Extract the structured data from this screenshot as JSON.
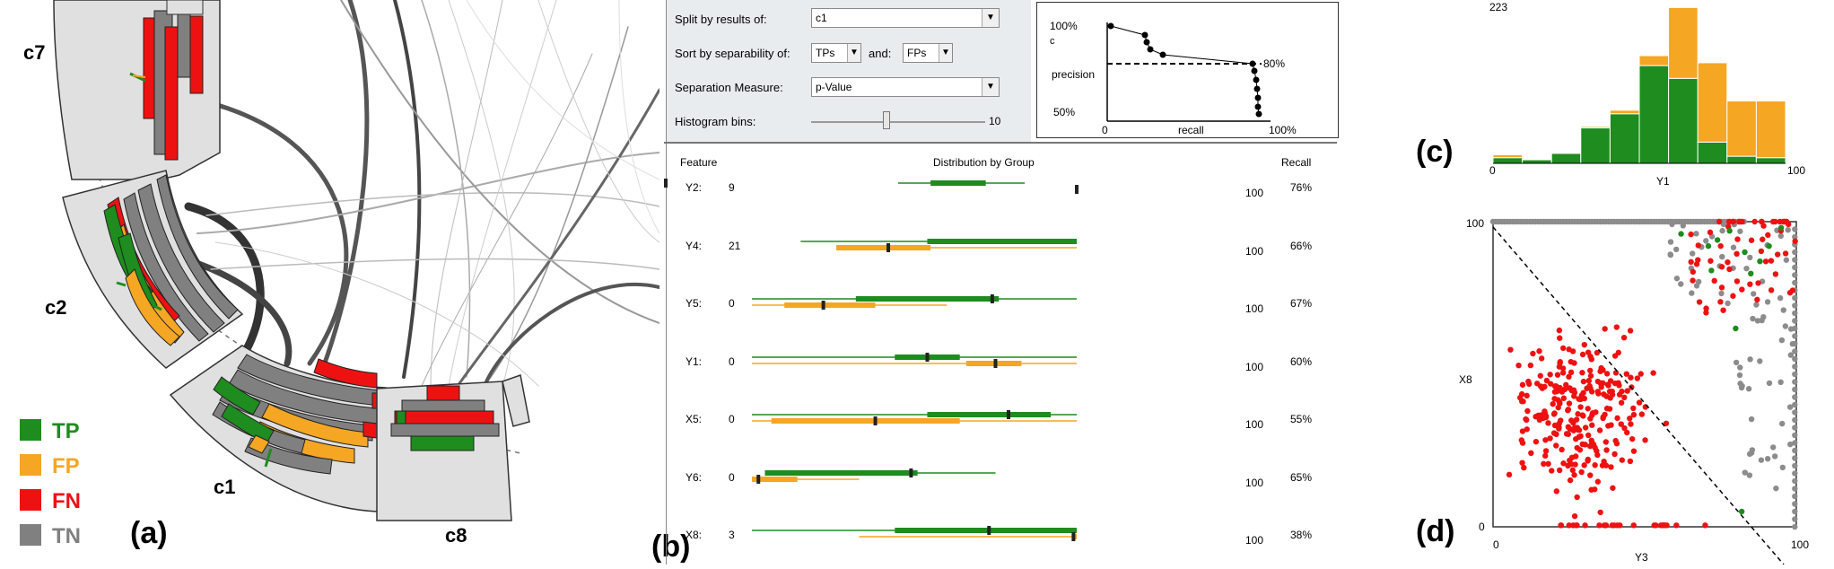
{
  "panel_a": {
    "label": "(a)",
    "clusters": [
      "c7",
      "c2",
      "c1",
      "c8"
    ],
    "legend": [
      {
        "label": "TP",
        "color": "#1e8c1e"
      },
      {
        "label": "FP",
        "color": "#f5a623"
      },
      {
        "label": "FN",
        "color": "#ee1111"
      },
      {
        "label": "TN",
        "color": "#808080"
      }
    ]
  },
  "panel_b": {
    "label": "(b)",
    "controls": {
      "split_label": "Split by results of:",
      "split_value": "c1",
      "sort_label": "Sort by separability of:",
      "sort_value_1": "TPs",
      "sort_and": "and:",
      "sort_value_2": "FPs",
      "measure_label": "Separation Measure:",
      "measure_value": "p-Value",
      "bins_label": "Histogram bins:",
      "bins_value": "10"
    },
    "pr_curve": {
      "y_top": "100%",
      "y_bottom": "50%",
      "y_title": "precision",
      "c_label": "c",
      "x_left": "0",
      "x_mid": "recall",
      "x_right": "100%",
      "threshold_label": "80%"
    },
    "table": {
      "col_feature": "Feature",
      "col_dist": "Distribution by Group",
      "col_recall": "Recall",
      "rows": [
        {
          "feature": "Y2:",
          "min": "9",
          "max": "100",
          "recall": "76%"
        },
        {
          "feature": "Y4:",
          "min": "21",
          "max": "100",
          "recall": "66%"
        },
        {
          "feature": "Y5:",
          "min": "0",
          "max": "100",
          "recall": "67%"
        },
        {
          "feature": "Y1:",
          "min": "0",
          "max": "100",
          "recall": "60%"
        },
        {
          "feature": "X5:",
          "min": "0",
          "max": "100",
          "recall": "55%"
        },
        {
          "feature": "Y6:",
          "min": "0",
          "max": "100",
          "recall": "65%"
        },
        {
          "feature": "X8:",
          "min": "3",
          "max": "100",
          "recall": "38%"
        }
      ]
    }
  },
  "panel_c": {
    "label": "(c)",
    "y_max_label": "223",
    "x_min_label": "0",
    "x_max_label": "100",
    "x_title": "Y1"
  },
  "panel_d": {
    "label": "(d)",
    "y_max_label": "100",
    "y_min_label": "0",
    "y_title": "X8",
    "x_min_label": "0",
    "x_max_label": "100",
    "x_title": "Y3"
  },
  "chart_data": [
    {
      "type": "bar",
      "title": "",
      "xlabel": "Y1",
      "ylabel": "",
      "xlim": [
        0,
        100
      ],
      "ylim": [
        0,
        223
      ],
      "categories": [
        "0-10",
        "10-20",
        "20-30",
        "30-40",
        "40-50",
        "50-60",
        "60-70",
        "70-80",
        "80-90",
        "90-100"
      ],
      "series": [
        {
          "values": [
            8,
            5,
            14,
            50,
            70,
            138,
            120,
            30,
            10,
            8
          ]
        },
        {
          "values": [
            4,
            0,
            0,
            2,
            5,
            14,
            100,
            112,
            78,
            80
          ]
        }
      ],
      "colors": [
        "#1e8c1e",
        "#f5a623"
      ],
      "stacked": true
    },
    {
      "type": "scatter",
      "xlabel": "Y3",
      "ylabel": "X8",
      "xlim": [
        0,
        100
      ],
      "ylim": [
        0,
        100
      ],
      "colors": {
        "FN": "#ee1111",
        "TN": "#8c8c8c",
        "TP": "#1e8c1e"
      }
    }
  ]
}
